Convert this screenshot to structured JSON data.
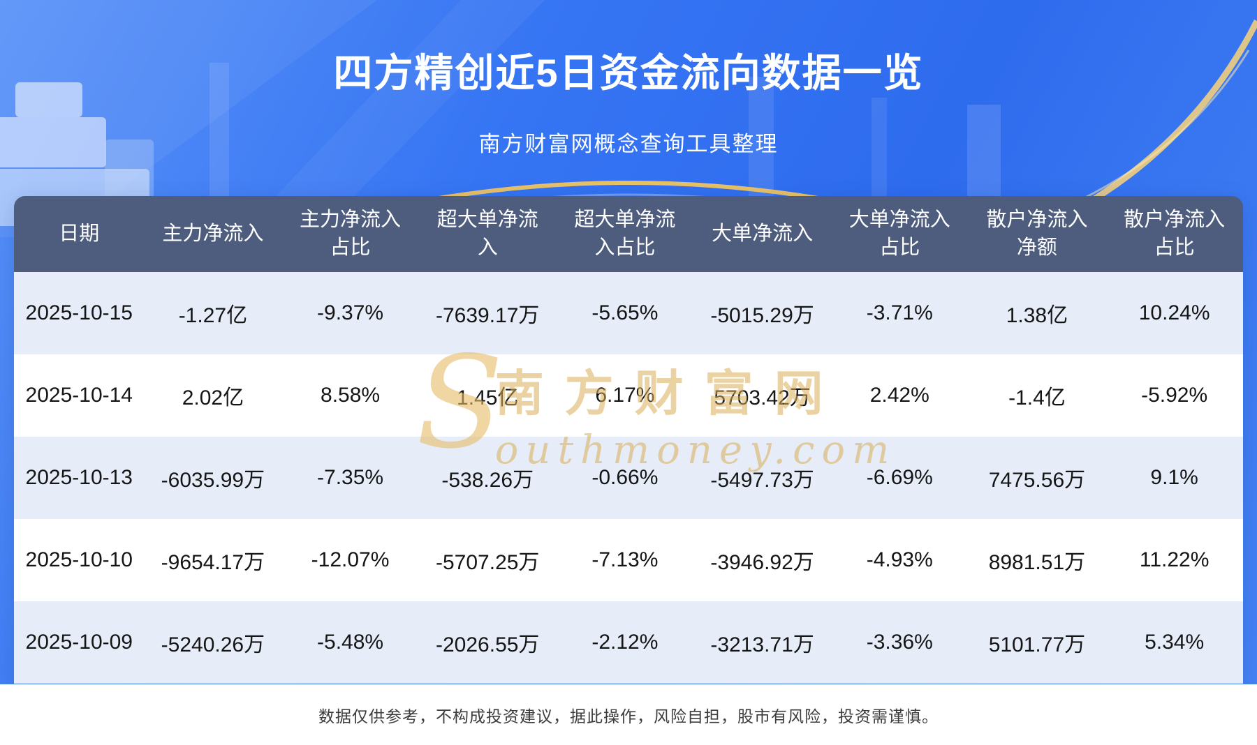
{
  "page": {
    "title": "四方精创近5日资金流向数据一览",
    "subtitle": "南方财富网概念查询工具整理",
    "disclaimer": "数据仅供参考，不构成投资建议，据此操作，风险自担，股市有风险，投资需谨慎。"
  },
  "watermark": {
    "initial": "S",
    "name_cn": "南方财富网",
    "name_en": "outhmoney.com"
  },
  "colors": {
    "background_blue": "#3372f2",
    "header_bg": "#4e5d7e",
    "row_alt_bg": "#e6edf9",
    "row_bg": "#ffffff",
    "accent_gold": "#f2c55f",
    "title_text": "#ffffff",
    "cell_text": "#151515",
    "footer_bg": "#ffffff",
    "footer_text": "#3c3c3c",
    "watermark_gold": "#d9ad55"
  },
  "chart_data": {
    "type": "table",
    "title": "四方精创近5日资金流向数据一览",
    "subtitle": "南方财富网概念查询工具整理",
    "columns": [
      "日期",
      "主力净流入",
      "主力净流入占比",
      "超大单净流入",
      "超大单净流入占比",
      "大单净流入",
      "大单净流入占比",
      "散户净流入净额",
      "散户净流入占比"
    ],
    "columns_display": [
      "日期",
      "主力净流入",
      "主力净流入\n占比",
      "超大单净流\n入",
      "超大单净流\n入占比",
      "大单净流入",
      "大单净流入\n占比",
      "散户净流入\n净额",
      "散户净流入\n占比"
    ],
    "rows": [
      [
        "2025-10-15",
        "-1.27亿",
        "-9.37%",
        "-7639.17万",
        "-5.65%",
        "-5015.29万",
        "-3.71%",
        "1.38亿",
        "10.24%"
      ],
      [
        "2025-10-14",
        "2.02亿",
        "8.58%",
        "1.45亿",
        "6.17%",
        "5703.42万",
        "2.42%",
        "-1.4亿",
        "-5.92%"
      ],
      [
        "2025-10-13",
        "-6035.99万",
        "-7.35%",
        "-538.26万",
        "-0.66%",
        "-5497.73万",
        "-6.69%",
        "7475.56万",
        "9.1%"
      ],
      [
        "2025-10-10",
        "-9654.17万",
        "-12.07%",
        "-5707.25万",
        "-7.13%",
        "-3946.92万",
        "-4.93%",
        "8981.51万",
        "11.22%"
      ],
      [
        "2025-10-09",
        "-5240.26万",
        "-5.48%",
        "-2026.55万",
        "-2.12%",
        "-3213.71万",
        "-3.36%",
        "5101.77万",
        "5.34%"
      ]
    ]
  }
}
